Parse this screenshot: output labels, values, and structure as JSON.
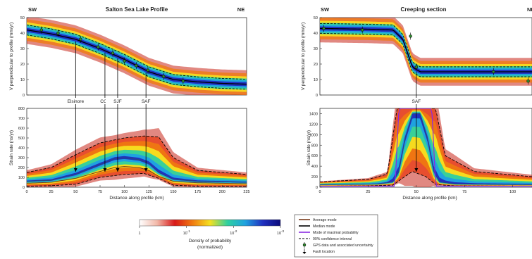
{
  "chart_data": [
    {
      "type": "area",
      "title": "Salton Sea Lake Profile",
      "left_label": "SW",
      "right_label": "NE",
      "ylabel": "V perpendicular to profile (mm/yr)",
      "ylim": [
        0,
        50
      ],
      "yticks": [
        "0",
        "10",
        "20",
        "30",
        "40",
        "50"
      ],
      "xlim": [
        0,
        225
      ],
      "median_mode": {
        "x": [
          0,
          25,
          50,
          75,
          100,
          125,
          150,
          175,
          200,
          225
        ],
        "y": [
          42,
          39.5,
          36,
          30,
          23,
          15,
          10,
          8.5,
          7.5,
          7
        ]
      },
      "gps": {
        "x": [
          15,
          32,
          55,
          73,
          88,
          100,
          112,
          124,
          140,
          160
        ],
        "y": [
          42,
          40,
          36,
          31,
          27,
          22,
          19,
          16,
          12,
          9
        ]
      },
      "faults": [
        {
          "name": "Elsinore",
          "x": 50
        },
        {
          "name": "CCF",
          "x": 80
        },
        {
          "name": "SJF",
          "x": 93
        },
        {
          "name": "SAF",
          "x": 122
        }
      ]
    },
    {
      "type": "area",
      "ylabel": "Strain rate (ns/yr)",
      "xlabel": "Distance along profile (km)",
      "xlim": [
        0,
        225
      ],
      "ylim": [
        0,
        800
      ],
      "xticks": [
        "0",
        "25",
        "50",
        "75",
        "100",
        "125",
        "150",
        "175",
        "200",
        "225"
      ],
      "yticks": [
        "0",
        "100",
        "200",
        "300",
        "400",
        "500",
        "600",
        "700",
        "800"
      ],
      "median_mode": {
        "x": [
          0,
          25,
          50,
          75,
          90,
          100,
          115,
          125,
          135,
          150,
          175,
          200,
          225
        ],
        "y": [
          60,
          70,
          130,
          230,
          290,
          300,
          280,
          240,
          150,
          80,
          60,
          55,
          50
        ]
      },
      "average_mode": {
        "x": [
          0,
          25,
          50,
          75,
          90,
          100,
          115,
          125,
          135,
          150,
          175,
          200,
          225
        ],
        "y": [
          40,
          50,
          90,
          160,
          200,
          210,
          200,
          170,
          110,
          60,
          45,
          40,
          35
        ]
      },
      "ci_upper": {
        "x": [
          0,
          25,
          50,
          75,
          100,
          120,
          135,
          150,
          175,
          200,
          225
        ],
        "y": [
          150,
          200,
          330,
          450,
          500,
          520,
          510,
          300,
          170,
          150,
          130
        ]
      },
      "ci_lower": {
        "x": [
          0,
          25,
          50,
          75,
          100,
          120,
          135,
          150,
          175,
          200,
          225
        ],
        "y": [
          10,
          15,
          30,
          100,
          130,
          140,
          90,
          20,
          10,
          10,
          10
        ]
      }
    },
    {
      "type": "area",
      "title": "Creeping section",
      "left_label": "SW",
      "right_label": "NE",
      "ylabel": "V perpendicular to profile (mm/yr)",
      "ylim": [
        0,
        50
      ],
      "yticks": [
        "0",
        "10",
        "20",
        "30",
        "40",
        "50"
      ],
      "xlim": [
        0,
        110
      ],
      "median_mode": {
        "x": [
          0,
          25,
          38,
          43,
          48,
          52,
          60,
          75,
          100,
          110
        ],
        "y": [
          43,
          42.5,
          42,
          36,
          18,
          15,
          15,
          15,
          15,
          15
        ]
      },
      "gps": {
        "x": [
          2,
          22,
          47,
          50,
          90,
          108
        ],
        "y": [
          43,
          42,
          38,
          18,
          15,
          9
        ]
      },
      "faults": [
        {
          "name": "SAF",
          "x": 50
        }
      ]
    },
    {
      "type": "area",
      "ylabel": "Strain rate (ns/yr)",
      "xlabel": "Distance along profile (km)",
      "xlim": [
        0,
        110
      ],
      "ylim": [
        0,
        1500
      ],
      "xticks": [
        "0",
        "25",
        "50",
        "75",
        "100"
      ],
      "yticks": [
        "0",
        "200",
        "400",
        "600",
        "800",
        "1000",
        "1200",
        "1400"
      ],
      "median_mode": {
        "x": [
          0,
          30,
          38,
          41,
          44,
          48,
          52,
          56,
          59,
          62,
          70,
          110
        ],
        "y": [
          50,
          60,
          100,
          300,
          900,
          1400,
          1400,
          900,
          300,
          100,
          60,
          50
        ]
      },
      "maximal_probability_mode": {
        "x": [
          0,
          39,
          40,
          41,
          58,
          59,
          60,
          110
        ],
        "y": [
          20,
          20,
          800,
          1500,
          1500,
          800,
          20,
          20
        ]
      },
      "ci_upper": {
        "x": [
          0,
          25,
          35,
          40,
          45,
          55,
          60,
          65,
          80,
          110
        ],
        "y": [
          100,
          150,
          250,
          1500,
          1500,
          1500,
          1500,
          600,
          300,
          200
        ]
      },
      "ci_lower": {
        "x": [
          0,
          25,
          38,
          42,
          48,
          55,
          60,
          70,
          110
        ],
        "y": [
          20,
          25,
          40,
          150,
          300,
          200,
          50,
          25,
          20
        ]
      }
    }
  ],
  "colorbar": {
    "tick_labels": [
      "1",
      "10",
      "10",
      "10"
    ],
    "tick_exponents": [
      "",
      "-1",
      "-2",
      "-3"
    ],
    "label_line1": "Density of probability",
    "label_line2": "(normalized)",
    "colors": [
      "#ffffff",
      "#f2b8a8",
      "#d81818",
      "#f07a10",
      "#f5e020",
      "#2ed0a0",
      "#1fa2e0",
      "#2030c0",
      "#0a0a7a"
    ]
  },
  "legend": {
    "items": [
      {
        "label": "Average mode",
        "color": "#7a3b1a"
      },
      {
        "label": "Median mode",
        "color": "#000000"
      },
      {
        "label": "Mode of maximal probability",
        "color": "#8a2be2"
      },
      {
        "label": "90% confidence interval",
        "color": "#000000"
      },
      {
        "label": "GPS data and associated uncertainty",
        "color": "#2e8b2e"
      },
      {
        "label": "Fault location",
        "color": "#000000"
      }
    ]
  }
}
